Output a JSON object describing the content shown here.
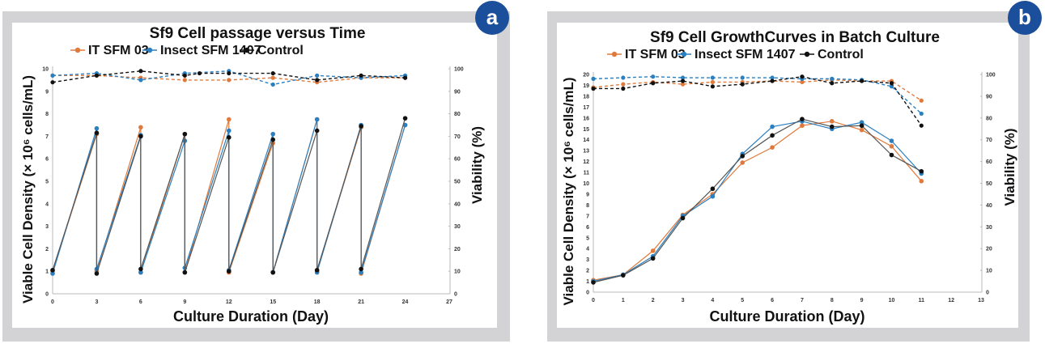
{
  "colors": {
    "it_sfm_03": "#e07a3c",
    "insect_sfm_1407": "#2a7fc0",
    "control": "#111111",
    "frame": "#d3d3d5",
    "badge": "#1b4f9c"
  },
  "panels": [
    {
      "badge": "a"
    },
    {
      "badge": "b"
    }
  ],
  "chart_data": [
    {
      "type": "line",
      "panel": "a",
      "title": "Sf9 Cell passage versus Time",
      "xlabel": "Culture Duration (Day)",
      "ylabel": "Viable Cell Density  (× 10⁶ cells/mL)",
      "y2label": "Viability (%)",
      "xlim": [
        0,
        27
      ],
      "ylim": [
        0,
        10
      ],
      "y2lim": [
        0,
        100
      ],
      "xticks": [
        "0",
        "3",
        "6",
        "9",
        "12",
        "15",
        "18",
        "21",
        "24",
        "27"
      ],
      "yticks": [
        "0",
        "1",
        "2",
        "3",
        "4",
        "5",
        "6",
        "7",
        "8",
        "9",
        "10"
      ],
      "y2ticks": [
        "0",
        "10",
        "20",
        "30",
        "40",
        "50",
        "60",
        "70",
        "80",
        "90",
        "100"
      ],
      "legend": [
        "IT SFM 03",
        "Insect SFM 1407",
        "Control"
      ],
      "legend_position": "top",
      "grid": false,
      "density_series": [
        {
          "name": "IT SFM 03",
          "x": [
            0,
            3,
            3,
            6,
            6,
            9,
            9,
            12,
            12,
            15,
            15,
            18,
            18,
            21,
            21,
            24
          ],
          "y": [
            1.0,
            7.1,
            1.0,
            7.4,
            0.95,
            7.1,
            0.95,
            7.75,
            0.95,
            6.7,
            0.95,
            7.75,
            1.0,
            7.4,
            0.9,
            7.5
          ]
        },
        {
          "name": "Insect SFM 1407",
          "x": [
            0,
            3,
            3,
            6,
            6,
            9,
            9,
            12,
            12,
            15,
            15,
            18,
            18,
            21,
            21,
            24
          ],
          "y": [
            0.9,
            7.35,
            1.1,
            7.05,
            0.95,
            6.8,
            1.15,
            7.25,
            1.05,
            7.1,
            0.95,
            7.75,
            0.95,
            7.5,
            0.95,
            7.5
          ]
        },
        {
          "name": "Control",
          "x": [
            0,
            3,
            3,
            6,
            6,
            9,
            9,
            12,
            12,
            15,
            15,
            18,
            18,
            21,
            21,
            24
          ],
          "y": [
            1.05,
            7.15,
            0.9,
            7.0,
            1.1,
            7.1,
            0.95,
            6.95,
            1.0,
            6.85,
            0.95,
            7.25,
            1.05,
            7.45,
            1.1,
            7.8
          ]
        }
      ],
      "viability_series": [
        {
          "name": "IT SFM 03",
          "x": [
            0,
            3,
            6,
            9,
            12,
            15,
            18,
            21,
            24
          ],
          "y": [
            97,
            97,
            96,
            95,
            95,
            96,
            94,
            96,
            96
          ]
        },
        {
          "name": "Insect SFM 1407",
          "x": [
            0,
            3,
            6,
            9,
            12,
            15,
            18,
            21,
            24
          ],
          "y": [
            97,
            98,
            95,
            98,
            99,
            93,
            97,
            96,
            97
          ]
        },
        {
          "name": "Control",
          "x": [
            0,
            3,
            6,
            9,
            10,
            12,
            15,
            18,
            21,
            24
          ],
          "y": [
            94,
            97,
            99,
            97,
            98,
            98,
            98,
            95,
            97,
            96
          ]
        }
      ]
    },
    {
      "type": "line",
      "panel": "b",
      "title": "Sf9 Cell GrowthCurves in Batch Culture",
      "xlabel": "Culture Duration (Day)",
      "ylabel": "Viable Cell Density  (× 10⁶ cells/mL)",
      "y2label": "Viability (%)",
      "xlim": [
        0,
        13
      ],
      "ylim": [
        0,
        20
      ],
      "y2lim": [
        0,
        100
      ],
      "xticks": [
        "0",
        "1",
        "2",
        "3",
        "4",
        "5",
        "6",
        "7",
        "8",
        "9",
        "10",
        "11",
        "12",
        "13"
      ],
      "yticks": [
        "0",
        "1",
        "2",
        "3",
        "4",
        "5",
        "6",
        "7",
        "8",
        "9",
        "10",
        "11",
        "12",
        "13",
        "14",
        "15",
        "16",
        "17",
        "18",
        "19",
        "20"
      ],
      "y2ticks": [
        "0",
        "10",
        "20",
        "30",
        "40",
        "50",
        "60",
        "70",
        "80",
        "90",
        "100"
      ],
      "legend": [
        "IT SFM 03",
        "Insect SFM 1407",
        "Control"
      ],
      "legend_position": "top",
      "grid": false,
      "density_series": [
        {
          "name": "IT SFM 03",
          "x": [
            0,
            1,
            2,
            3,
            4,
            5,
            6,
            7,
            8,
            9,
            10,
            11
          ],
          "y": [
            1.1,
            1.6,
            3.8,
            7.1,
            9.0,
            11.9,
            13.3,
            15.3,
            15.7,
            14.9,
            13.4,
            10.2
          ]
        },
        {
          "name": "Insect SFM 1407",
          "x": [
            0,
            1,
            2,
            3,
            4,
            5,
            6,
            7,
            8,
            9,
            10,
            11
          ],
          "y": [
            1.0,
            1.6,
            3.3,
            7.0,
            8.8,
            12.7,
            15.2,
            15.7,
            15.0,
            15.6,
            13.9,
            10.9
          ]
        },
        {
          "name": "Control",
          "x": [
            0,
            1,
            2,
            3,
            4,
            5,
            6,
            7,
            8,
            9,
            10,
            11
          ],
          "y": [
            0.9,
            1.55,
            3.1,
            6.8,
            9.5,
            12.5,
            14.4,
            15.9,
            15.2,
            15.3,
            12.6,
            11.1
          ]
        }
      ],
      "viability_series": [
        {
          "name": "IT SFM 03",
          "x": [
            0,
            1,
            2,
            3,
            4,
            5,
            6,
            7,
            8,
            9,
            10,
            11
          ],
          "y": [
            94,
            95.5,
            96.5,
            95.5,
            96.5,
            96.5,
            97,
            96.5,
            97.5,
            97,
            97,
            88
          ]
        },
        {
          "name": "Insect SFM 1407",
          "x": [
            0,
            1,
            2,
            3,
            4,
            5,
            6,
            7,
            8,
            9,
            10,
            11
          ],
          "y": [
            98,
            98.5,
            99,
            98.5,
            98.5,
            98.5,
            98.5,
            98,
            98,
            97.5,
            94.5,
            82
          ]
        },
        {
          "name": "Control",
          "x": [
            0,
            1,
            2,
            3,
            4,
            5,
            6,
            7,
            8,
            9,
            10,
            11
          ],
          "y": [
            93.5,
            93.5,
            96,
            97,
            94.5,
            95.5,
            97,
            99,
            96,
            97,
            96,
            76.5
          ]
        }
      ]
    }
  ]
}
